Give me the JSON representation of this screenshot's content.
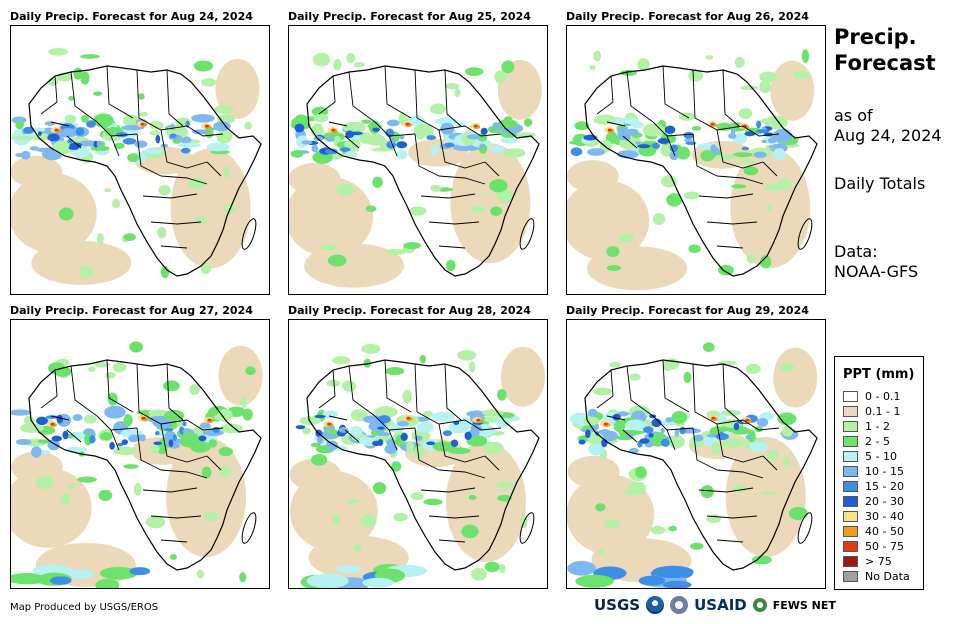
{
  "panels": [
    {
      "title": "Daily Precip. Forecast for Aug 24, 2024"
    },
    {
      "title": "Daily Precip. Forecast for Aug 25, 2024"
    },
    {
      "title": "Daily Precip. Forecast for Aug 26, 2024"
    },
    {
      "title": "Daily Precip. Forecast for Aug 27, 2024"
    },
    {
      "title": "Daily Precip. Forecast for Aug 28, 2024"
    },
    {
      "title": "Daily Precip. Forecast for Aug 29, 2024"
    }
  ],
  "sidebar": {
    "title_line1": "Precip.",
    "title_line2": "Forecast",
    "asof_line1": "as of",
    "asof_line2": "Aug 24, 2024",
    "totals": "Daily Totals",
    "data_line1": "Data:",
    "data_line2": "NOAA-GFS"
  },
  "legend": {
    "title": "PPT (mm)",
    "items": [
      {
        "label": "0 - 0.1",
        "color": "#ffffff"
      },
      {
        "label": "0.1 - 1",
        "color": "#ecd9b9"
      },
      {
        "label": "1 - 2",
        "color": "#b3f2a6"
      },
      {
        "label": "2 - 5",
        "color": "#6be36b"
      },
      {
        "label": "5 - 10",
        "color": "#b7f2f2"
      },
      {
        "label": "10 - 15",
        "color": "#7fb8f0"
      },
      {
        "label": "15 - 20",
        "color": "#3c8ee6"
      },
      {
        "label": "20 - 30",
        "color": "#1c5fd6"
      },
      {
        "label": "30 - 40",
        "color": "#f7e08a"
      },
      {
        "label": "40 - 50",
        "color": "#f29a1c"
      },
      {
        "label": "50 - 75",
        "color": "#e43a12"
      },
      {
        "label": "> 75",
        "color": "#a31616"
      },
      {
        "label": "No Data",
        "color": "#a0a0a0"
      }
    ]
  },
  "footer": {
    "credit": "Map Produced by USGS/EROS",
    "logo_usgs": "USGS",
    "logo_usaid": "USAID",
    "logo_fews": "FEWS NET"
  }
}
